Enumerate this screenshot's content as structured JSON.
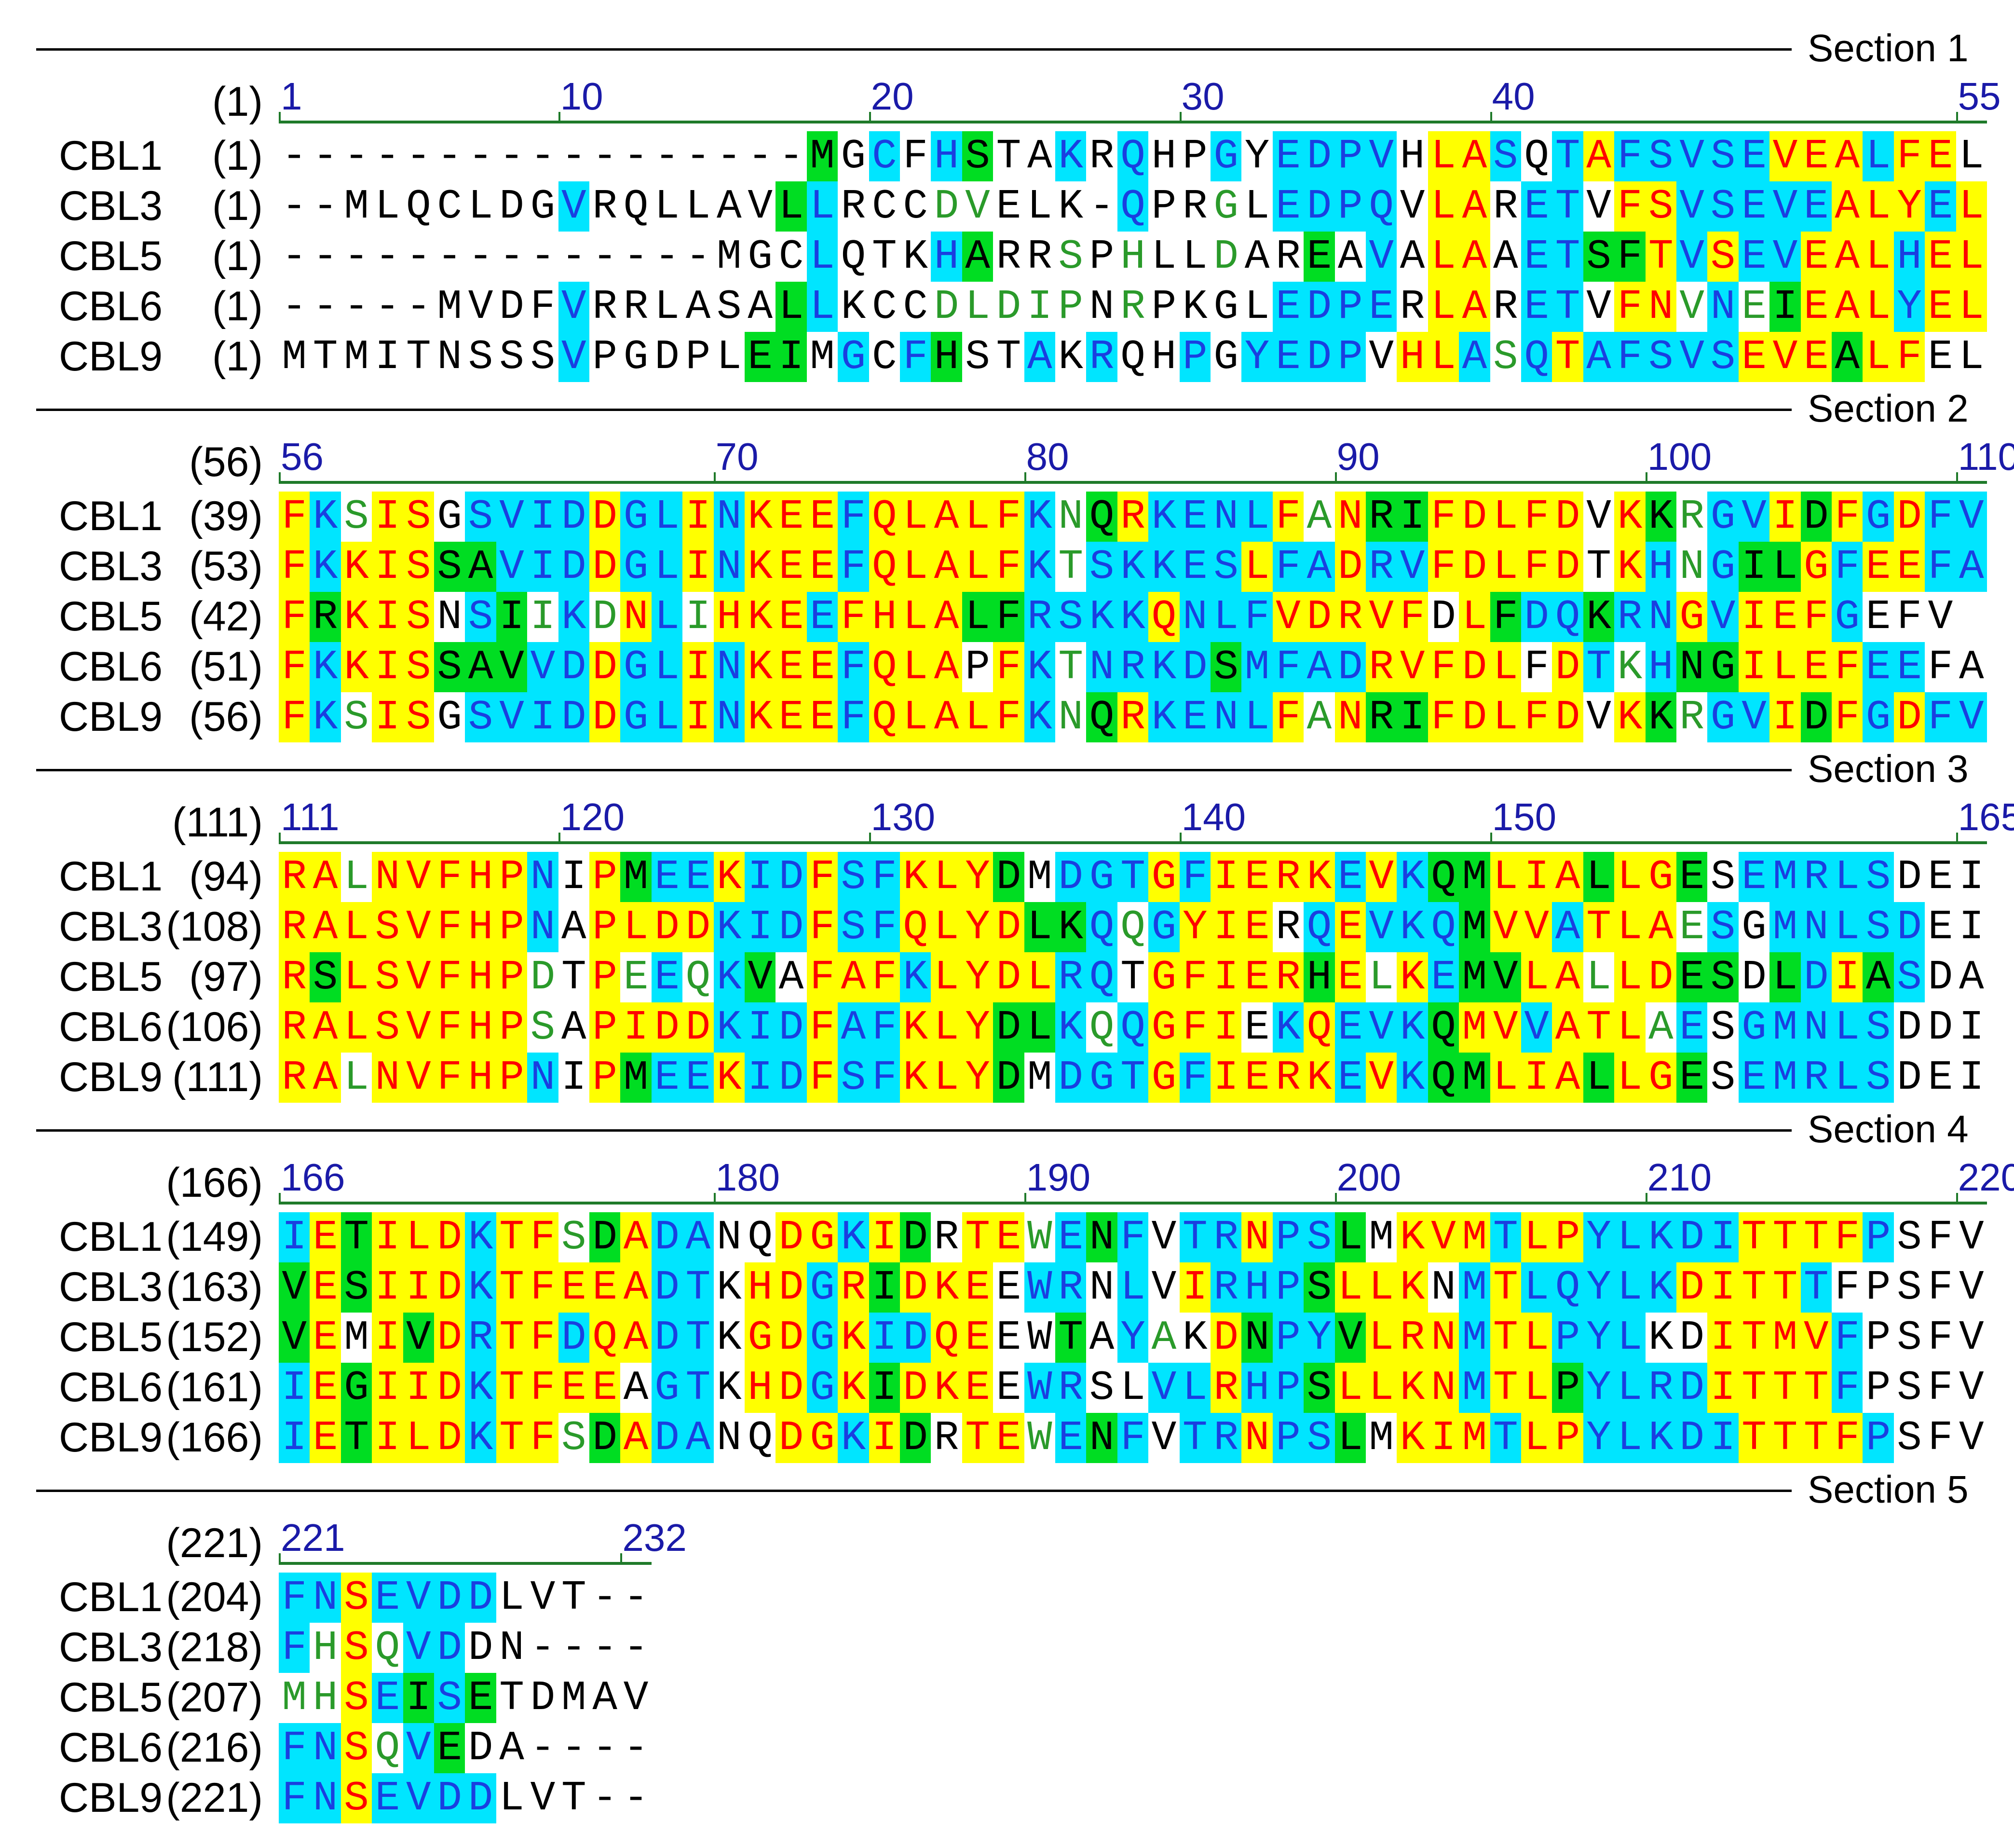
{
  "colors": {
    "identical_bg": "#ffff00",
    "identical_fg": "#ff0000",
    "conserved_bg": "#00e5ff",
    "conserved_fg": "#1a3fe0",
    "similar_bg": "#00dd22",
    "similar_fg": "#000000",
    "weak_fg": "#2a9a2a",
    "none_fg": "#000000"
  },
  "sections": [
    {
      "label": "Section 1",
      "ruler_prefix": "(1)",
      "ruler": [
        {
          "n": "1",
          "col": 0
        },
        {
          "n": "10",
          "col": 9
        },
        {
          "n": "20",
          "col": 19
        },
        {
          "n": "30",
          "col": 29
        },
        {
          "n": "40",
          "col": 39
        },
        {
          "n": "55",
          "col": 54
        }
      ],
      "rows": [
        {
          "name": "CBL1",
          "pos": "(1)",
          "seq": "-----------------MGCFHSTAKRQHPGYEDPVHLASQTAFSVSEVEALFEL",
          "cls": "nnnnnnnnnnnnnnnnnsncncsnncncnncnccccnyycncycccccyyycyy"
        },
        {
          "name": "CBL3",
          "pos": "(1)",
          "seq": "--MLQCLDGVRQLLAVLLRCCDVELK-QPRGLEDPQVLARETVFSVSEVEALYEL",
          "cls": "nnnnnnnnncnnnnnnscnnnwwnnnncnnwnccccnyynccnyycccccyyycyy"
        },
        {
          "name": "CBL5",
          "pos": "(1)",
          "seq": "--------------MGCLQTKHARRSPHLLDAREAVALAAETSFTVSEVEALHEL",
          "cls": "nnnnnnnnnnnnnnnnncnnncsnnwnwnnwnnsncnyynccssycyccyyycyy"
        },
        {
          "name": "CBL6",
          "pos": "(1)",
          "seq": "-----MVDFVRRLASALLKCCDLDIPNRPKGLEDPERLARETVFNVNEIEALYEL",
          "cls": "nnnnnnnnncnnnnnnscnnnwwwwwnwnnnnccccnyynccnyywcwsyyycyy"
        },
        {
          "name": "CBL9",
          "pos": "(1)",
          "seq": "MTMITNSSSVPGDPLEIMGCFHSTAKRQHPGYEDPVHLASQTAFSVSEVEALFEL",
          "cls": "nnnnnnnnncnnnnnssncncsnncncnncnccccnyycwcycccccyyysyy"
        }
      ]
    },
    {
      "label": "Section 2",
      "ruler_prefix": "(56)",
      "ruler": [
        {
          "n": "56",
          "col": 0
        },
        {
          "n": "70",
          "col": 14
        },
        {
          "n": "80",
          "col": 24
        },
        {
          "n": "90",
          "col": 34
        },
        {
          "n": "100",
          "col": 44
        },
        {
          "n": "110",
          "col": 54
        }
      ],
      "rows": [
        {
          "name": "CBL1",
          "pos": "(39)",
          "seq": "FKSISGSVIDDGLINKEEFQLALFKNQRKENLFANRIFDLFDVKKRGVIDFGDFV",
          "cls": "ycwyynccccyccycyyycyyyyycwsyccccywyssyyyyynyswccysycycc"
        },
        {
          "name": "CBL3",
          "pos": "(53)",
          "seq": "FKKISSAVIDDGLINKEEFQLALFKTSKKESLFADRVFDLFDTKHNGILGFEEFA",
          "cls": "ycyyysscccyccycyyycyyyyycwcccccyccyccyyyyynycwcssycyycc"
        },
        {
          "name": "CBL5",
          "pos": "(42)",
          "seq": "FRKISNSIIKDNLIHKEEFHLALFRSKKQNLFVDRVFDLFDQKRNGVIEFGEFV",
          "cls": "ysyyyncswcwycwyyycyyyyssccccycccyyyyynysccsccycyyyc"
        },
        {
          "name": "CBL6",
          "pos": "(51)",
          "seq": "FKKISSAVVDDGLINKEEFQLAPFKTNRKDSMFADRVFDLFDTKHNGILEFEEFA",
          "cls": "ycyyysssccyccycyyycyyynycwccccsccccyyyyynycwcssyyyycc"
        },
        {
          "name": "CBL9",
          "pos": "(56)",
          "seq": "FKSISGSVIDDGLINKEEFQLALFKNQRKENLFANRIFDLFDVKKRGVIDFGDFV",
          "cls": "ycwyynccccyccycyyycyyyyycwsyccccywyssyyyyynyswccysycycc"
        }
      ]
    },
    {
      "label": "Section 3",
      "ruler_prefix": "(111)",
      "ruler": [
        {
          "n": "111",
          "col": 0
        },
        {
          "n": "120",
          "col": 9
        },
        {
          "n": "130",
          "col": 19
        },
        {
          "n": "140",
          "col": 29
        },
        {
          "n": "150",
          "col": 39
        },
        {
          "n": "165",
          "col": 54
        }
      ],
      "rows": [
        {
          "name": "CBL1",
          "pos": "(94)",
          "seq": "RALNVFHPNIPMEEKIDFSFKLYDMDGTGFIERKEVKQMLIALLGESEMRLSDEI",
          "cls": "yywyyyyycnysccyccyccyyysncccycyyyycycssyyysyysnccccc"
        },
        {
          "name": "CBL3",
          "pos": "(108)",
          "seq": "RALSVFHPNAPLDDKIDFSFQLYDLKQQGYIERQEVKQMVVATLAESGMNLSDEI",
          "cls": "yyyyyyyycnyyyycccyccyyyysscwcyyyncycccsyycyyywcnccccc"
        },
        {
          "name": "CBL5",
          "pos": "(97)",
          "seq": "RSLSVFHPDTPEEQKVAFAFKLYDLRQTGFIERHELKEMVLALLDESDLDIASDA",
          "cls": "ysyyyyyywnywcwcsnyyycyyyyccnyyyyysywycssyywyyssnscyscn"
        },
        {
          "name": "CBL6",
          "pos": "(106)",
          "seq": "RALSVFHPSAPIDDKIDFAFKLYDLKQQGFIEKQEVKQMVVATLAESGMNLSDDI",
          "cls": "yyyyyyyywnyyyycccyccyyysscwcyyyncycccsyycyyywcnccccc"
        },
        {
          "name": "CBL9",
          "pos": "(111)",
          "seq": "RALNVFHPNIPMEEKIDFSFKLYDMDGTGFIERKEVKQMLIALLGESEMRLSDEI",
          "cls": "yywyyyyycnysccyccyccyyysncccycyyyycycssyyysyysnccccc"
        }
      ]
    },
    {
      "label": "Section 4",
      "ruler_prefix": "(166)",
      "ruler": [
        {
          "n": "166",
          "col": 0
        },
        {
          "n": "180",
          "col": 14
        },
        {
          "n": "190",
          "col": 24
        },
        {
          "n": "200",
          "col": 34
        },
        {
          "n": "210",
          "col": 44
        },
        {
          "n": "220",
          "col": 54
        }
      ],
      "rows": [
        {
          "name": "CBL1",
          "pos": "(149)",
          "seq": "IETILDKTFSDADANQDGKIDRTEWENFVTRNPSLMKVMTLPYLKDITTTFPSFV",
          "cls": "cysyyycyywsyccnnyycysnyywcscnccyccsnyyycyycccccyyyyc"
        },
        {
          "name": "CBL3",
          "pos": "(163)",
          "seq": "VESIIDKTFEEADTKHDGRIDKEEWRNLVIRHPSLLKNMTLQYLKDITTTFPSFV",
          "cls": "sysyyycyyyyyccnyycysyyynccncnycccsyyyncycccccyyyyc"
        },
        {
          "name": "CBL5",
          "pos": "(152)",
          "seq": "VEMIVDRTFDQADTKGDGKIDQEEWTAYAKDNPYVLRNMTLPYLKDITMVFPSFV",
          "cls": "synysycyycyyccnyycyccyynnsncwnysccsyyycyycccnnyyyyc"
        },
        {
          "name": "CBL6",
          "pos": "(161)",
          "seq": "IEGIIDKTFEEAGTKHDGKIDKEEWRSLVLRHPSLLKNMTLPYLRDITTTFPSFV",
          "cls": "cysyyycyyyynccnyycysyyynccnnccyccsyyyycyysccccyyyyc"
        },
        {
          "name": "CBL9",
          "pos": "(166)",
          "seq": "IETILDKTFSDADANQDGKIDRTEWENFVTRNPSLMKIMTLPYLKDITTTFPSFV",
          "cls": "cysyyycyywsyccnnyycysnyywcscnccyccsnyyycyycccccyyyyc"
        }
      ]
    },
    {
      "label": "Section 5",
      "ruler_prefix": "(221)",
      "ruler": [
        {
          "n": "221",
          "col": 0
        },
        {
          "n": "232",
          "col": 11
        }
      ],
      "rows": [
        {
          "name": "CBL1",
          "pos": "(204)",
          "seq": "FNSEVDDLVT--",
          "cls": "ccyccccnnnnn"
        },
        {
          "name": "CBL3",
          "pos": "(218)",
          "seq": "FHSQVDDN----",
          "cls": "cwywccnnnnn"
        },
        {
          "name": "CBL5",
          "pos": "(207)",
          "seq": "MHSEISETDMAV",
          "cls": "wwycscsnnnnn"
        },
        {
          "name": "CBL6",
          "pos": "(216)",
          "seq": "FNSQVEDA----",
          "cls": "ccywcsnnnnn"
        },
        {
          "name": "CBL9",
          "pos": "(221)",
          "seq": "FNSEVDDLVT--",
          "cls": "ccyccccnnnnn"
        }
      ]
    }
  ]
}
